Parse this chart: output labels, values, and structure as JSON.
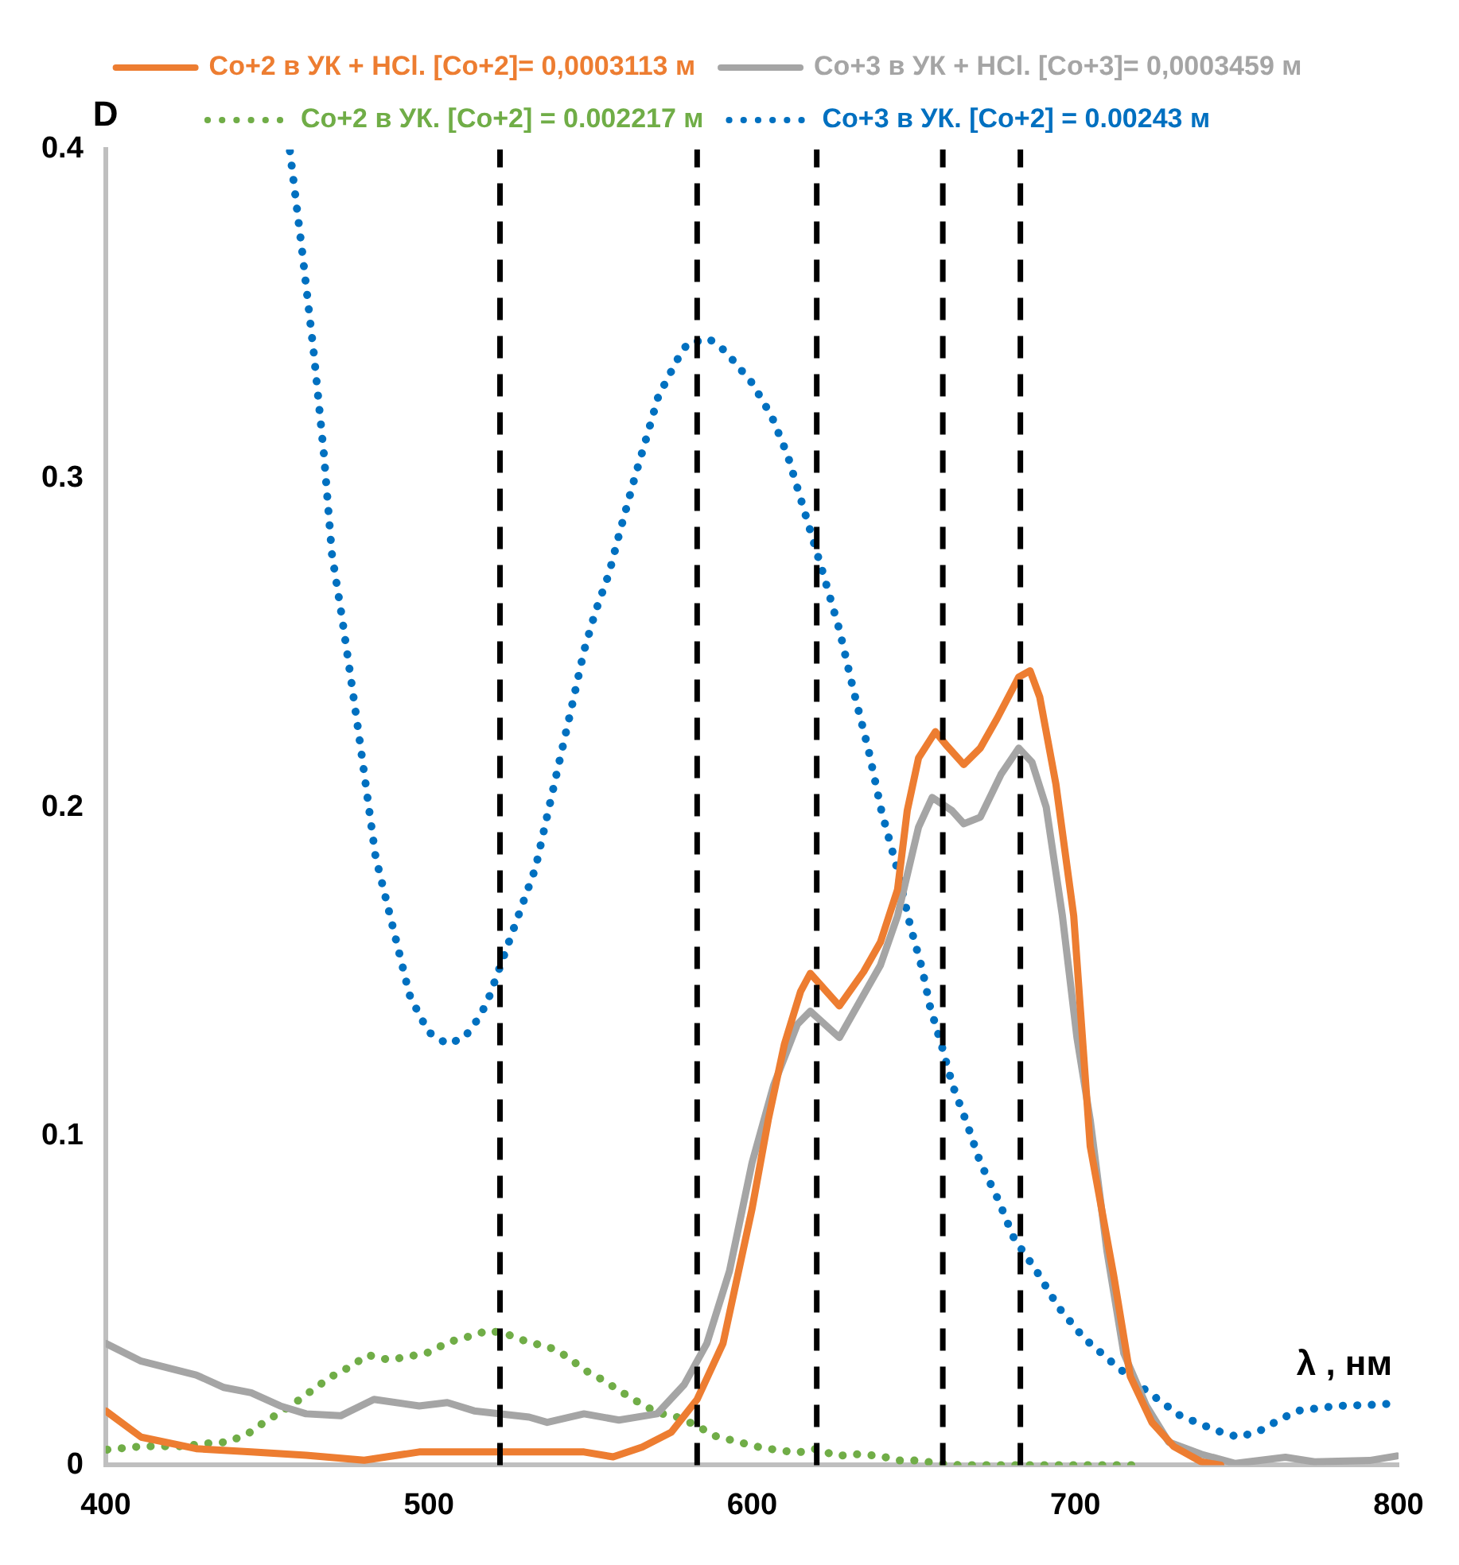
{
  "chart_data": {
    "type": "line",
    "xlabel": "λ , нм",
    "ylabel": "D",
    "xlim": [
      400,
      800
    ],
    "xticks": [
      400,
      500,
      600,
      700,
      800
    ],
    "ylim": [
      0,
      0.4
    ],
    "yticks": [
      0,
      0.1,
      0.2,
      0.3,
      0.4
    ],
    "grid": false,
    "legend": "top",
    "marker": "none",
    "ref_lines": [
      {
        "axis": "x",
        "value": 522,
        "color": "#000000",
        "line_style": "dashed"
      },
      {
        "axis": "x",
        "value": 583,
        "color": "#000000",
        "line_style": "dashed"
      },
      {
        "axis": "x",
        "value": 620,
        "color": "#000000",
        "line_style": "dashed"
      },
      {
        "axis": "x",
        "value": 659,
        "color": "#000000",
        "line_style": "dashed"
      },
      {
        "axis": "x",
        "value": 683,
        "color": "#000000",
        "line_style": "dashed"
      }
    ],
    "series": [
      {
        "name": "Co+2 в УК + HCl. [Co+2]= 0,0003113 м",
        "color": "#ed7d31",
        "line_style": "solid",
        "x": [
          400,
          411,
          428,
          445,
          462,
          480,
          497,
          514,
          531,
          548,
          557,
          566,
          575,
          583,
          591,
          600,
          605,
          610,
          615,
          618,
          627,
          634.5,
          639.7,
          645,
          648,
          651.5,
          656.7,
          660,
          665.5,
          670.6,
          675.8,
          682.5,
          686,
          689,
          694,
          699.5,
          704.6,
          711.9,
          717,
          723.7,
          730.4,
          739,
          745
        ],
        "values": [
          0.0165,
          0.0085,
          0.005,
          0.004,
          0.003,
          0.0015,
          0.004,
          0.004,
          0.004,
          0.004,
          0.0025,
          0.0055,
          0.01,
          0.02,
          0.037,
          0.078,
          0.105,
          0.128,
          0.144,
          0.1495,
          0.1396,
          0.15,
          0.159,
          0.175,
          0.199,
          0.215,
          0.223,
          0.219,
          0.213,
          0.218,
          0.227,
          0.2396,
          0.2415,
          0.2335,
          0.207,
          0.167,
          0.097,
          0.0575,
          0.027,
          0.013,
          0.0057,
          0.001,
          0
        ]
      },
      {
        "name": "Co+3 в УК + HCl. [Co+3]= 0,0003459 м",
        "color": "#a5a5a5",
        "line_style": "solid",
        "x": [
          400,
          411,
          428,
          436.6,
          445,
          454,
          462,
          472.7,
          483,
          497,
          505.7,
          514,
          531,
          536.6,
          548,
          558.8,
          570.6,
          579,
          586,
          593,
          600,
          606.7,
          614,
          618,
          627,
          639.7,
          645,
          651.5,
          655.7,
          661.8,
          665.5,
          670.6,
          677,
          682.5,
          686.6,
          691,
          696,
          700.5,
          704.6,
          709.8,
          715,
          722,
          728.9,
          739,
          749.5,
          765,
          774,
          791,
          799.5
        ],
        "values": [
          0.037,
          0.0316,
          0.0274,
          0.0236,
          0.022,
          0.018,
          0.0156,
          0.015,
          0.02,
          0.018,
          0.019,
          0.0165,
          0.0146,
          0.013,
          0.0156,
          0.0137,
          0.0156,
          0.0245,
          0.037,
          0.059,
          0.092,
          0.1156,
          0.134,
          0.138,
          0.13,
          0.152,
          0.167,
          0.194,
          0.203,
          0.199,
          0.195,
          0.197,
          0.21,
          0.218,
          0.2137,
          0.2,
          0.167,
          0.13,
          0.105,
          0.065,
          0.034,
          0.018,
          0.007,
          0.0033,
          0.0005,
          0.0024,
          0.001,
          0.0014,
          0.0028
        ]
      },
      {
        "name": "Co+2 в УК. [Co+2] = 0.002217 м",
        "color": "#70ad47",
        "line_style": "dotted",
        "x": [
          400.5,
          411,
          424,
          431,
          437.6,
          443.8,
          449,
          454,
          459.8,
          465,
          470,
          475.8,
          481,
          487.6,
          493.8,
          500.5,
          505.7,
          512,
          518.6,
          524.7,
          531,
          537,
          542.8,
          548,
          553.6,
          559,
          565,
          570.6,
          576.8,
          583,
          588,
          594,
          601,
          607,
          614,
          620,
          626,
          632.5,
          639.7,
          645,
          651.5,
          657.7,
          664,
          677,
          689.7,
          701,
          714,
          720
        ],
        "values": [
          0.0047,
          0.0057,
          0.0057,
          0.0066,
          0.007,
          0.0094,
          0.013,
          0.016,
          0.0198,
          0.0236,
          0.027,
          0.03,
          0.0335,
          0.032,
          0.033,
          0.0344,
          0.0373,
          0.039,
          0.041,
          0.0396,
          0.0373,
          0.036,
          0.033,
          0.029,
          0.026,
          0.0226,
          0.019,
          0.016,
          0.0146,
          0.012,
          0.009,
          0.0075,
          0.0057,
          0.0047,
          0.0038,
          0.005,
          0.0028,
          0.0033,
          0.0028,
          0.0014,
          0.0014,
          0.0005,
          0,
          0,
          0,
          0,
          0,
          0
        ]
      },
      {
        "name": "Co+3 в УК. [Co+2] = 0.00243 м",
        "color": "#0070c0",
        "line_style": "dotted",
        "x": [
          457,
          460.8,
          464.4,
          467.5,
          470,
          473,
          475.8,
          478.4,
          481,
          483.5,
          494,
          497,
          500,
          505.7,
          511,
          515,
          518,
          533,
          535.6,
          539.7,
          544,
          548,
          551.5,
          555.7,
          559,
          563.9,
          567.5,
          571,
          576.8,
          580,
          586.6,
          591.7,
          600,
          606,
          611,
          616.5,
          622,
          627,
          631.4,
          636,
          640,
          644.8,
          649,
          652.6,
          655,
          658.8,
          662,
          666.5,
          670.6,
          676,
          681,
          688,
          694.8,
          702.6,
          712,
          722,
          732.5,
          744,
          750.5,
          757,
          763,
          768.6,
          781,
          794,
          800
        ],
        "values": [
          0.3995,
          0.369,
          0.338,
          0.3075,
          0.277,
          0.2585,
          0.2396,
          0.2217,
          0.203,
          0.185,
          0.143,
          0.137,
          0.1316,
          0.128,
          0.13,
          0.1354,
          0.1406,
          0.1816,
          0.193,
          0.211,
          0.2297,
          0.2476,
          0.2594,
          0.271,
          0.2835,
          0.301,
          0.313,
          0.325,
          0.336,
          0.341,
          0.3425,
          0.3387,
          0.329,
          0.319,
          0.307,
          0.289,
          0.271,
          0.254,
          0.2354,
          0.2175,
          0.199,
          0.1816,
          0.1637,
          0.151,
          0.1396,
          0.127,
          0.1156,
          0.1038,
          0.092,
          0.081,
          0.069,
          0.059,
          0.048,
          0.0387,
          0.0307,
          0.0226,
          0.015,
          0.0104,
          0.0085,
          0.0104,
          0.0137,
          0.0165,
          0.018,
          0.0184,
          0.0189
        ]
      }
    ]
  }
}
